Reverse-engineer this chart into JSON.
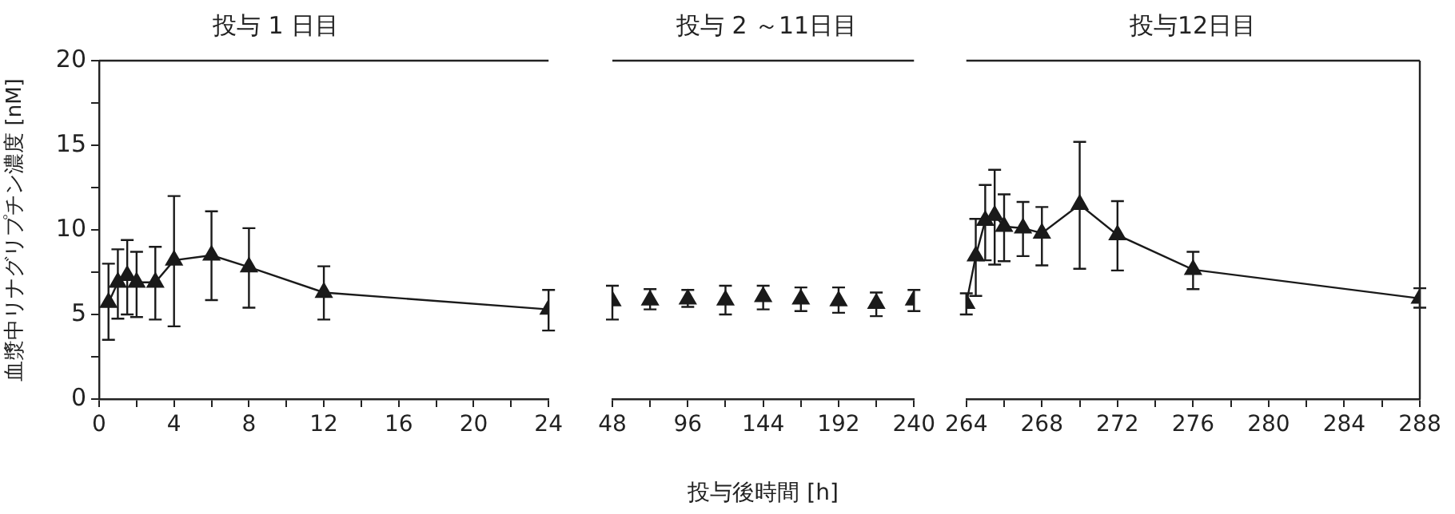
{
  "chart_data": [
    {
      "type": "line",
      "title": "投与 1 日目",
      "ylabel": "血漿中リナグリプチン濃度 [nM]",
      "marker": "triangle",
      "grid": false,
      "xlim": [
        0,
        24
      ],
      "xticks": [
        0,
        {
          "value": 2,
          "label": null
        },
        4,
        {
          "value": 6,
          "label": null
        },
        8,
        {
          "value": 10,
          "label": null
        },
        12,
        {
          "value": 14,
          "label": null
        },
        16,
        {
          "value": 18,
          "label": null
        },
        20,
        {
          "value": 22,
          "label": null
        },
        24
      ],
      "ylim": [
        0,
        20
      ],
      "yticks": [
        0,
        {
          "value": 2.5,
          "label": null
        },
        5,
        {
          "value": 7.5,
          "label": null
        },
        10,
        {
          "value": 12.5,
          "label": null
        },
        15,
        {
          "value": 17.5,
          "label": null
        },
        20
      ],
      "x": [
        0.5,
        1,
        1.5,
        2,
        3,
        4,
        6,
        8,
        12,
        24
      ],
      "series": [
        {
          "color": "#1a1a1a",
          "values": [
            5.7,
            6.9,
            7.3,
            6.9,
            6.9,
            8.2,
            8.5,
            7.8,
            6.3,
            5.3
          ],
          "errors": [
            [
              3.5,
              8.0
            ],
            [
              4.75,
              8.85
            ],
            [
              5.0,
              9.4
            ],
            [
              4.85,
              8.7
            ],
            [
              4.7,
              9.0
            ],
            [
              4.3,
              12.0
            ],
            [
              5.85,
              11.1
            ],
            [
              5.4,
              10.1
            ],
            [
              4.7,
              7.85
            ],
            [
              4.05,
              6.45
            ]
          ]
        }
      ]
    },
    {
      "type": "scatter",
      "title": "投与 2 ～11日目",
      "xlabel": "投与後時間 [h]",
      "marker": "triangle",
      "grid": false,
      "tick_labels": "x",
      "xlim": [
        48,
        240
      ],
      "xticks": [
        48,
        {
          "value": 72,
          "label": null
        },
        96,
        {
          "value": 120,
          "label": null
        },
        144,
        {
          "value": 168,
          "label": null
        },
        192,
        {
          "value": 216,
          "label": null
        },
        240
      ],
      "ylim": [
        0,
        20
      ],
      "x": [
        48,
        72,
        96,
        120,
        144,
        168,
        192,
        216,
        240
      ],
      "series": [
        {
          "color": "#1a1a1a",
          "values": [
            5.8,
            5.85,
            5.9,
            5.85,
            6.05,
            5.9,
            5.8,
            5.65,
            5.85
          ],
          "errors": [
            [
              4.7,
              6.7
            ],
            [
              5.3,
              6.5
            ],
            [
              5.45,
              6.45
            ],
            [
              5.0,
              6.7
            ],
            [
              5.3,
              6.7
            ],
            [
              5.2,
              6.6
            ],
            [
              5.1,
              6.6
            ],
            [
              4.9,
              6.3
            ],
            [
              5.2,
              6.45
            ]
          ]
        }
      ]
    },
    {
      "type": "line",
      "title": "投与12日目",
      "marker": "triangle",
      "grid": false,
      "tick_labels": "x",
      "xlim": [
        264,
        288
      ],
      "xticks": [
        264,
        {
          "value": 266,
          "label": null
        },
        268,
        {
          "value": 270,
          "label": null
        },
        272,
        {
          "value": 274,
          "label": null
        },
        276,
        {
          "value": 278,
          "label": null
        },
        280,
        {
          "value": 282,
          "label": null
        },
        284,
        {
          "value": 286,
          "label": null
        },
        288
      ],
      "ylim": [
        0,
        20
      ],
      "x": [
        264,
        264.5,
        265,
        265.5,
        266,
        267,
        268,
        270,
        272,
        276,
        288
      ],
      "series": [
        {
          "color": "#1a1a1a",
          "values": [
            5.65,
            8.45,
            10.55,
            10.85,
            10.2,
            10.1,
            9.8,
            11.5,
            9.7,
            7.65,
            5.95
          ],
          "errors": [
            [
              5.0,
              6.25
            ],
            [
              6.1,
              10.65
            ],
            [
              8.2,
              12.65
            ],
            [
              7.95,
              13.55
            ],
            [
              8.15,
              12.1
            ],
            [
              8.45,
              11.65
            ],
            [
              7.9,
              11.35
            ],
            [
              7.7,
              15.2
            ],
            [
              7.6,
              11.7
            ],
            [
              6.5,
              8.7
            ],
            [
              5.4,
              6.55
            ]
          ]
        }
      ]
    }
  ]
}
